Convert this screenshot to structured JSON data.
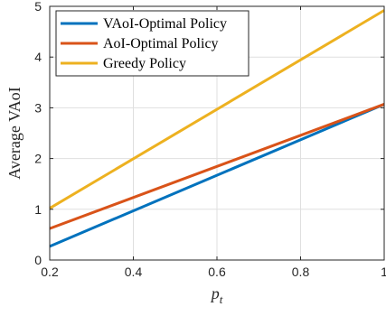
{
  "chart_data": {
    "type": "line",
    "xlabel": "p",
    "xlabel_sub": "t",
    "ylabel": "Average VAoI",
    "xlim": [
      0.2,
      1
    ],
    "ylim": [
      0,
      5
    ],
    "xticks": [
      0.2,
      0.4,
      0.6,
      0.8,
      1
    ],
    "xtick_labels": [
      "0.2",
      "0.4",
      "0.6",
      "0.8",
      "1"
    ],
    "yticks": [
      0,
      1,
      2,
      3,
      4,
      5
    ],
    "ytick_labels": [
      "0",
      "1",
      "2",
      "3",
      "4",
      "5"
    ],
    "grid": true,
    "legend_position": "top-left",
    "series": [
      {
        "name": "VAoI-Optimal Policy",
        "color": "#0072BD",
        "x": [
          0.2,
          1
        ],
        "y": [
          0.27,
          3.07
        ]
      },
      {
        "name": "AoI-Optimal Policy",
        "color": "#D95319",
        "x": [
          0.2,
          1
        ],
        "y": [
          0.62,
          3.07
        ]
      },
      {
        "name": "Greedy Policy",
        "color": "#EDB120",
        "x": [
          0.2,
          1
        ],
        "y": [
          1.02,
          4.92
        ]
      }
    ]
  }
}
